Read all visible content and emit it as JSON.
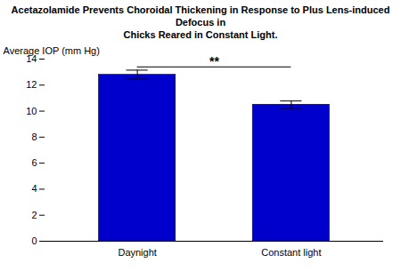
{
  "chart_data": {
    "type": "bar",
    "title": "Acetazolamide Prevents Choroidal Thickening in Response to Plus Lens-induced Defocus in\nChicks Reared in Constant Light.",
    "categories": [
      "Daynight",
      "Constant light"
    ],
    "values": [
      12.8,
      10.5
    ],
    "errors": [
      0.35,
      0.28
    ],
    "color": "#0000CC",
    "ylabel": "Average IOP (mm Hg)",
    "ylim": [
      0,
      14
    ],
    "yticks": [
      0,
      2,
      4,
      6,
      8,
      10,
      12,
      14
    ],
    "grid": false,
    "annotations": [
      {
        "text": "**",
        "x": [
          "Daynight",
          "Constant light"
        ],
        "y": 13.4
      }
    ]
  }
}
